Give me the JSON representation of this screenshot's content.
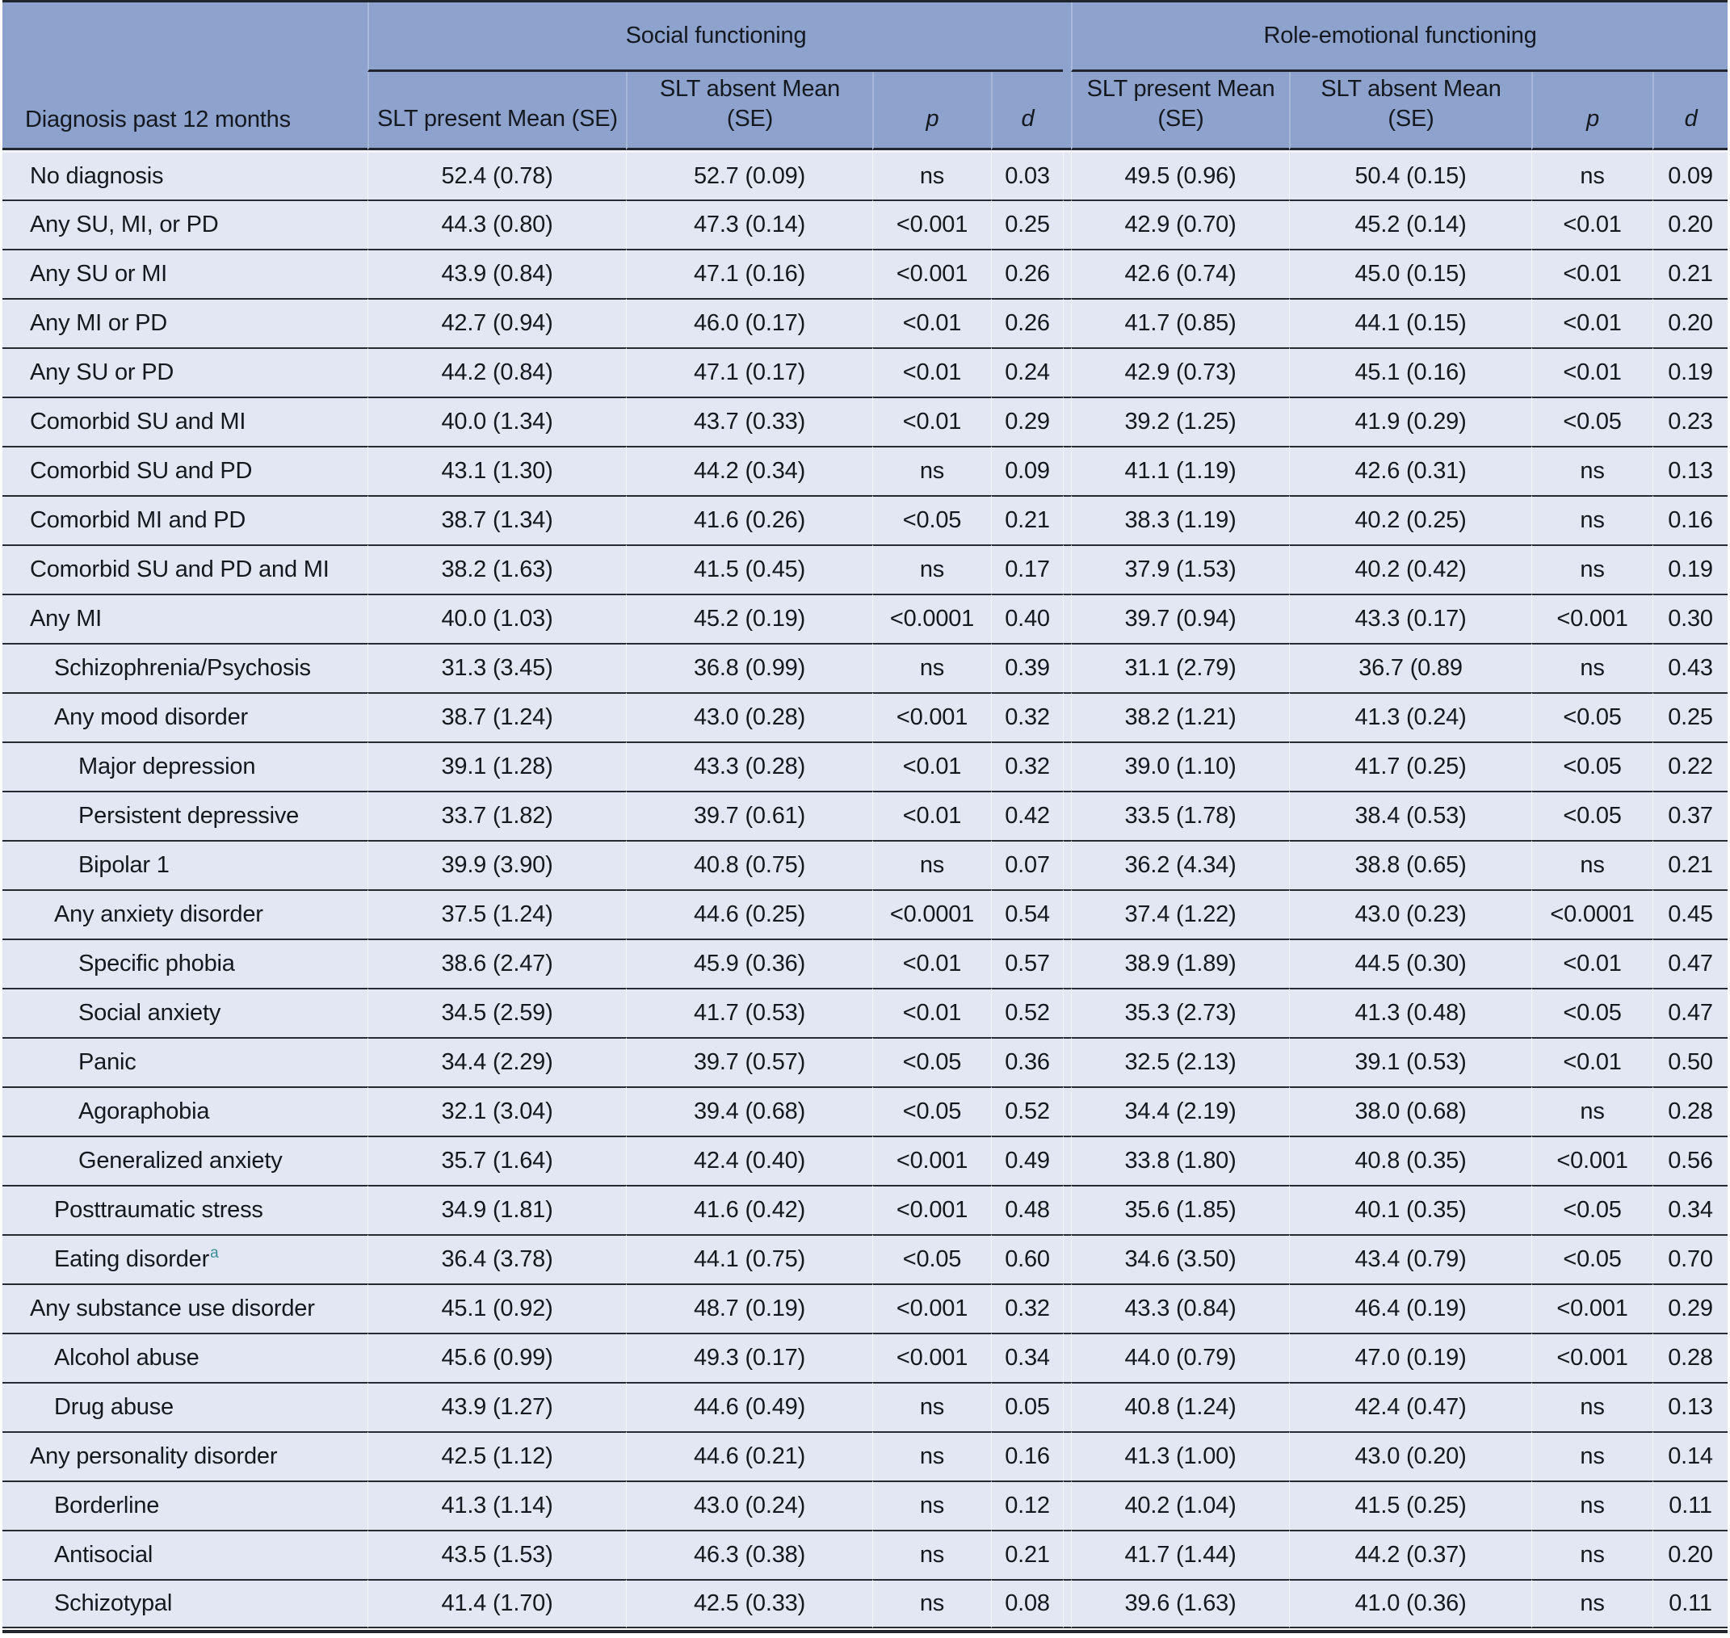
{
  "colors": {
    "header_bg": "#8da3ce",
    "row_bg": "#e2e7f3",
    "rule_dark": "#21252e",
    "row_line": "#262a33",
    "footnote_teal": "#3a8f9b"
  },
  "table": {
    "col1_header": "Diagnosis past 12 months",
    "groups": [
      {
        "label": "Social functioning"
      },
      {
        "label": "Role-emotional functioning"
      }
    ],
    "subheaders": {
      "present": "SLT present Mean (SE)",
      "absent": "SLT absent Mean (SE)",
      "p": "p",
      "d": "d"
    },
    "rows": [
      {
        "label": "No diagnosis",
        "indent": 0,
        "sf": [
          "52.4 (0.78)",
          "52.7 (0.09)",
          "ns",
          "0.03"
        ],
        "re": [
          "49.5 (0.96)",
          "50.4 (0.15)",
          "ns",
          "0.09"
        ]
      },
      {
        "label": "Any SU, MI, or PD",
        "indent": 0,
        "sf": [
          "44.3 (0.80)",
          "47.3 (0.14)",
          "<0.001",
          "0.25"
        ],
        "re": [
          "42.9 (0.70)",
          "45.2 (0.14)",
          "<0.01",
          "0.20"
        ]
      },
      {
        "label": "Any SU or MI",
        "indent": 0,
        "sf": [
          "43.9 (0.84)",
          "47.1 (0.16)",
          "<0.001",
          "0.26"
        ],
        "re": [
          "42.6 (0.74)",
          "45.0 (0.15)",
          "<0.01",
          "0.21"
        ]
      },
      {
        "label": "Any MI or PD",
        "indent": 0,
        "sf": [
          "42.7 (0.94)",
          "46.0 (0.17)",
          "<0.01",
          "0.26"
        ],
        "re": [
          "41.7 (0.85)",
          "44.1 (0.15)",
          "<0.01",
          "0.20"
        ]
      },
      {
        "label": "Any SU or PD",
        "indent": 0,
        "sf": [
          "44.2 (0.84)",
          "47.1 (0.17)",
          "<0.01",
          "0.24"
        ],
        "re": [
          "42.9 (0.73)",
          "45.1 (0.16)",
          "<0.01",
          "0.19"
        ]
      },
      {
        "label": "Comorbid SU and MI",
        "indent": 0,
        "sf": [
          "40.0 (1.34)",
          "43.7 (0.33)",
          "<0.01",
          "0.29"
        ],
        "re": [
          "39.2 (1.25)",
          "41.9 (0.29)",
          "<0.05",
          "0.23"
        ]
      },
      {
        "label": "Comorbid SU and PD",
        "indent": 0,
        "sf": [
          "43.1 (1.30)",
          "44.2 (0.34)",
          "ns",
          "0.09"
        ],
        "re": [
          "41.1 (1.19)",
          "42.6 (0.31)",
          "ns",
          "0.13"
        ]
      },
      {
        "label": "Comorbid MI and PD",
        "indent": 0,
        "sf": [
          "38.7 (1.34)",
          "41.6 (0.26)",
          "<0.05",
          "0.21"
        ],
        "re": [
          "38.3 (1.19)",
          "40.2 (0.25)",
          "ns",
          "0.16"
        ]
      },
      {
        "label": "Comorbid SU and PD and MI",
        "indent": 0,
        "sf": [
          "38.2 (1.63)",
          "41.5 (0.45)",
          "ns",
          "0.17"
        ],
        "re": [
          "37.9 (1.53)",
          "40.2 (0.42)",
          "ns",
          "0.19"
        ]
      },
      {
        "label": "Any MI",
        "indent": 0,
        "sf": [
          "40.0 (1.03)",
          "45.2 (0.19)",
          "<0.0001",
          "0.40"
        ],
        "re": [
          "39.7 (0.94)",
          "43.3 (0.17)",
          "<0.001",
          "0.30"
        ]
      },
      {
        "label": "Schizophrenia/Psychosis",
        "indent": 1,
        "sf": [
          "31.3 (3.45)",
          "36.8 (0.99)",
          "ns",
          "0.39"
        ],
        "re": [
          "31.1 (2.79)",
          "36.7 (0.89",
          "ns",
          "0.43"
        ]
      },
      {
        "label": "Any mood disorder",
        "indent": 1,
        "sf": [
          "38.7 (1.24)",
          "43.0 (0.28)",
          "<0.001",
          "0.32"
        ],
        "re": [
          "38.2 (1.21)",
          "41.3 (0.24)",
          "<0.05",
          "0.25"
        ]
      },
      {
        "label": "Major depression",
        "indent": 2,
        "sf": [
          "39.1 (1.28)",
          "43.3 (0.28)",
          "<0.01",
          "0.32"
        ],
        "re": [
          "39.0 (1.10)",
          "41.7 (0.25)",
          "<0.05",
          "0.22"
        ]
      },
      {
        "label": "Persistent depressive",
        "indent": 2,
        "sf": [
          "33.7 (1.82)",
          "39.7 (0.61)",
          "<0.01",
          "0.42"
        ],
        "re": [
          "33.5 (1.78)",
          "38.4 (0.53)",
          "<0.05",
          "0.37"
        ]
      },
      {
        "label": "Bipolar 1",
        "indent": 2,
        "sf": [
          "39.9 (3.90)",
          "40.8 (0.75)",
          "ns",
          "0.07"
        ],
        "re": [
          "36.2 (4.34)",
          "38.8 (0.65)",
          "ns",
          "0.21"
        ]
      },
      {
        "label": "Any anxiety disorder",
        "indent": 1,
        "sf": [
          "37.5 (1.24)",
          "44.6 (0.25)",
          "<0.0001",
          "0.54"
        ],
        "re": [
          "37.4 (1.22)",
          "43.0 (0.23)",
          "<0.0001",
          "0.45"
        ]
      },
      {
        "label": "Specific phobia",
        "indent": 2,
        "sf": [
          "38.6 (2.47)",
          "45.9 (0.36)",
          "<0.01",
          "0.57"
        ],
        "re": [
          "38.9 (1.89)",
          "44.5 (0.30)",
          "<0.01",
          "0.47"
        ]
      },
      {
        "label": "Social anxiety",
        "indent": 2,
        "sf": [
          "34.5 (2.59)",
          "41.7 (0.53)",
          "<0.01",
          "0.52"
        ],
        "re": [
          "35.3 (2.73)",
          "41.3 (0.48)",
          "<0.05",
          "0.47"
        ]
      },
      {
        "label": "Panic",
        "indent": 2,
        "sf": [
          "34.4 (2.29)",
          "39.7 (0.57)",
          "<0.05",
          "0.36"
        ],
        "re": [
          "32.5 (2.13)",
          "39.1 (0.53)",
          "<0.01",
          "0.50"
        ]
      },
      {
        "label": "Agoraphobia",
        "indent": 2,
        "sf": [
          "32.1 (3.04)",
          "39.4 (0.68)",
          "<0.05",
          "0.52"
        ],
        "re": [
          "34.4 (2.19)",
          "38.0 (0.68)",
          "ns",
          "0.28"
        ]
      },
      {
        "label": "Generalized anxiety",
        "indent": 2,
        "sf": [
          "35.7 (1.64)",
          "42.4 (0.40)",
          "<0.001",
          "0.49"
        ],
        "re": [
          "33.8 (1.80)",
          "40.8 (0.35)",
          "<0.001",
          "0.56"
        ]
      },
      {
        "label": "Posttraumatic stress",
        "indent": 1,
        "sf": [
          "34.9 (1.81)",
          "41.6 (0.42)",
          "<0.001",
          "0.48"
        ],
        "re": [
          "35.6 (1.85)",
          "40.1 (0.35)",
          "<0.05",
          "0.34"
        ]
      },
      {
        "label": "Eating disorder",
        "sup": "a",
        "indent": 1,
        "sf": [
          "36.4 (3.78)",
          "44.1 (0.75)",
          "<0.05",
          "0.60"
        ],
        "re": [
          "34.6 (3.50)",
          "43.4 (0.79)",
          "<0.05",
          "0.70"
        ]
      },
      {
        "label": "Any substance use disorder",
        "indent": 0,
        "sf": [
          "45.1 (0.92)",
          "48.7 (0.19)",
          "<0.001",
          "0.32"
        ],
        "re": [
          "43.3 (0.84)",
          "46.4 (0.19)",
          "<0.001",
          "0.29"
        ]
      },
      {
        "label": "Alcohol abuse",
        "indent": 1,
        "sf": [
          "45.6 (0.99)",
          "49.3 (0.17)",
          "<0.001",
          "0.34"
        ],
        "re": [
          "44.0 (0.79)",
          "47.0 (0.19)",
          "<0.001",
          "0.28"
        ]
      },
      {
        "label": "Drug abuse",
        "indent": 1,
        "sf": [
          "43.9 (1.27)",
          "44.6 (0.49)",
          "ns",
          "0.05"
        ],
        "re": [
          "40.8 (1.24)",
          "42.4 (0.47)",
          "ns",
          "0.13"
        ]
      },
      {
        "label": "Any personality disorder",
        "indent": 0,
        "sf": [
          "42.5 (1.12)",
          "44.6 (0.21)",
          "ns",
          "0.16"
        ],
        "re": [
          "41.3 (1.00)",
          "43.0 (0.20)",
          "ns",
          "0.14"
        ]
      },
      {
        "label": "Borderline",
        "indent": 1,
        "sf": [
          "41.3 (1.14)",
          "43.0 (0.24)",
          "ns",
          "0.12"
        ],
        "re": [
          "40.2 (1.04)",
          "41.5 (0.25)",
          "ns",
          "0.11"
        ]
      },
      {
        "label": "Antisocial",
        "indent": 1,
        "sf": [
          "43.5 (1.53)",
          "46.3 (0.38)",
          "ns",
          "0.21"
        ],
        "re": [
          "41.7 (1.44)",
          "44.2 (0.37)",
          "ns",
          "0.20"
        ]
      },
      {
        "label": "Schizotypal",
        "indent": 1,
        "sf": [
          "41.4 (1.70)",
          "42.5 (0.33)",
          "ns",
          "0.08"
        ],
        "re": [
          "39.6 (1.63)",
          "41.0 (0.36)",
          "ns",
          "0.11"
        ]
      }
    ]
  }
}
